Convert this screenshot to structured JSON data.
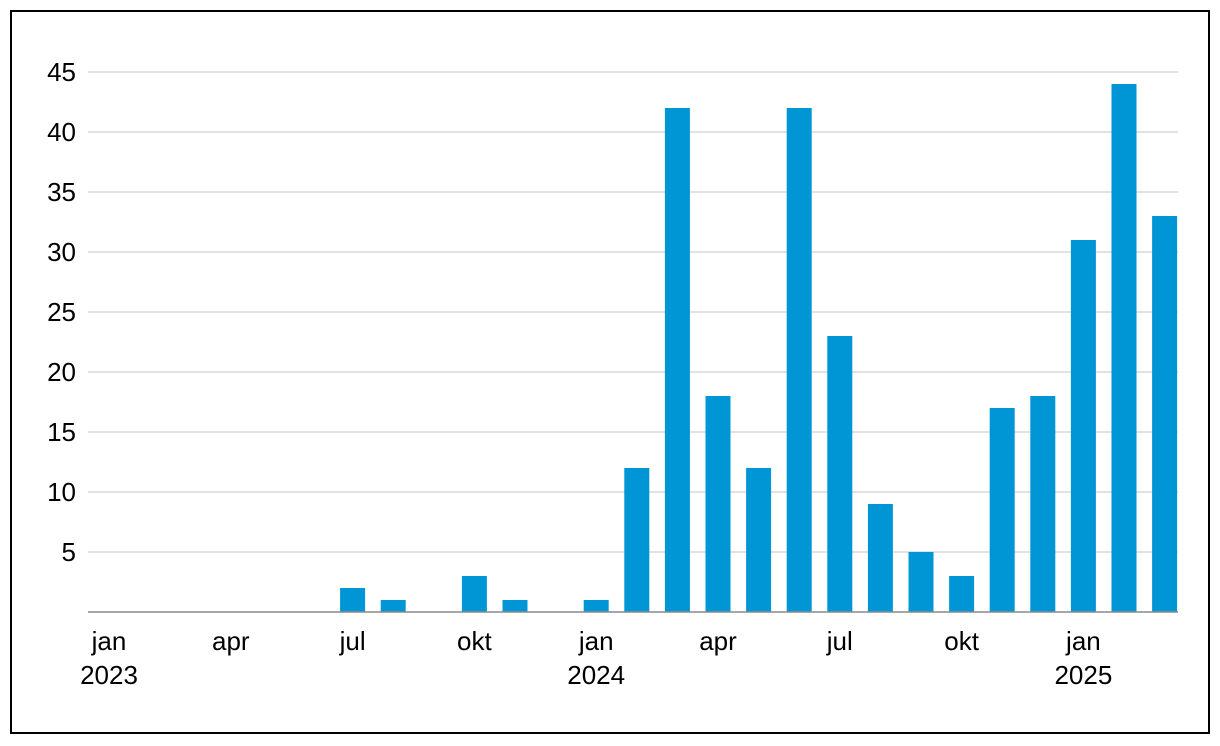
{
  "chart_data": {
    "type": "bar",
    "title": "",
    "xlabel": "",
    "ylabel": "",
    "ylim": [
      0,
      45
    ],
    "yticks": [
      5,
      10,
      15,
      20,
      25,
      30,
      35,
      40,
      45
    ],
    "grid": true,
    "bar_color": "#0096d6",
    "categories": [
      "2023-01",
      "2023-02",
      "2023-03",
      "2023-04",
      "2023-05",
      "2023-06",
      "2023-07",
      "2023-08",
      "2023-09",
      "2023-10",
      "2023-11",
      "2023-12",
      "2024-01",
      "2024-02",
      "2024-03",
      "2024-04",
      "2024-05",
      "2024-06",
      "2024-07",
      "2024-08",
      "2024-09",
      "2024-10",
      "2024-11",
      "2024-12",
      "2025-01",
      "2025-02",
      "2025-03"
    ],
    "values": [
      0,
      0,
      0,
      0,
      0,
      0,
      2,
      1,
      0,
      3,
      1,
      0,
      1,
      12,
      42,
      18,
      12,
      42,
      23,
      9,
      5,
      3,
      17,
      18,
      31,
      44,
      33
    ],
    "xtick_labels": [
      {
        "index": 0,
        "month": "jan",
        "year": "2023"
      },
      {
        "index": 3,
        "month": "apr",
        "year": ""
      },
      {
        "index": 6,
        "month": "jul",
        "year": ""
      },
      {
        "index": 9,
        "month": "okt",
        "year": ""
      },
      {
        "index": 12,
        "month": "jan",
        "year": "2024"
      },
      {
        "index": 15,
        "month": "apr",
        "year": ""
      },
      {
        "index": 18,
        "month": "jul",
        "year": ""
      },
      {
        "index": 21,
        "month": "okt",
        "year": ""
      },
      {
        "index": 24,
        "month": "jan",
        "year": "2025"
      }
    ]
  }
}
